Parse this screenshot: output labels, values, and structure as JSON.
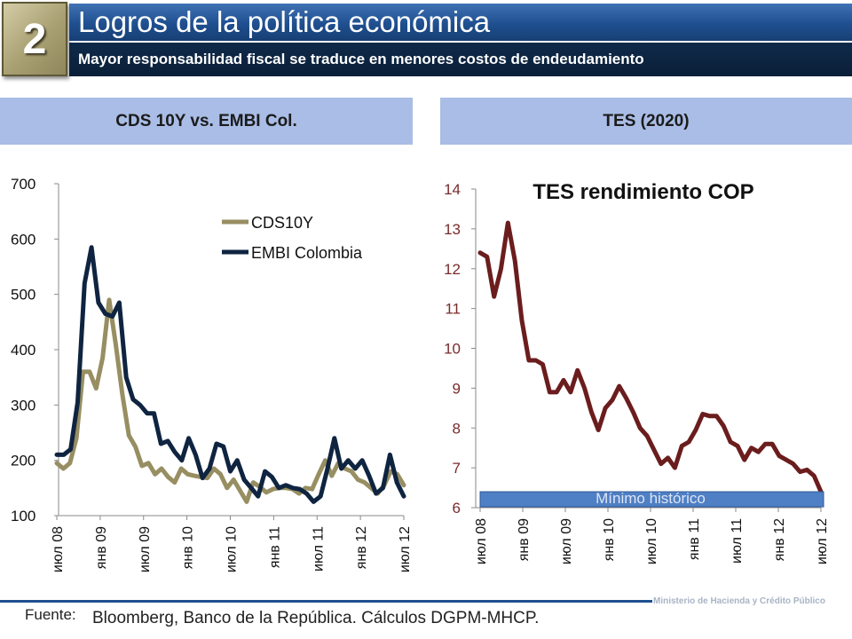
{
  "header": {
    "section_number": "2",
    "title": "Logros de la política económica",
    "subtitle": "Mayor responsabilidad fiscal se traduce en menores costos de endeudamiento"
  },
  "panels": {
    "left_title": "CDS 10Y vs. EMBI Col.",
    "right_title": "TES (2020)"
  },
  "footer": {
    "source_label": "Fuente:",
    "source_text": "Bloomberg, Banco de la República. Cálculos DGPM-MHCP.",
    "ministry": "Ministerio de Hacienda y Crédito Público"
  },
  "colors": {
    "cds": "#978e62",
    "embi": "#0f2440",
    "tes": "#6b1d1d",
    "min_band": "#4f7fc4"
  },
  "chart_data": [
    {
      "type": "line",
      "title": "",
      "xlabel": "",
      "ylabel": "",
      "ylim": [
        100,
        700
      ],
      "yticks": [
        100,
        200,
        300,
        400,
        500,
        600,
        700
      ],
      "x_ticklabels": [
        "июл 08",
        "янв 09",
        "июл 09",
        "янв 10",
        "июл 10",
        "янв 11",
        "июл 11",
        "янв 12",
        "июл 12"
      ],
      "legend_position": "top-right",
      "grid": false,
      "series": [
        {
          "name": "CDS10Y",
          "color": "#978e62",
          "values": [
            195,
            185,
            195,
            240,
            360,
            360,
            330,
            385,
            490,
            410,
            320,
            245,
            225,
            190,
            195,
            175,
            185,
            170,
            160,
            185,
            175,
            172,
            170,
            168,
            185,
            175,
            150,
            165,
            145,
            125,
            160,
            152,
            142,
            148,
            150,
            150,
            148,
            140,
            150,
            148,
            175,
            200,
            172,
            195,
            185,
            180,
            165,
            160,
            150,
            140,
            155,
            180,
            175,
            155
          ]
        },
        {
          "name": "EMBI Colombia",
          "color": "#0f2440",
          "values": [
            210,
            210,
            220,
            305,
            520,
            585,
            485,
            465,
            460,
            485,
            350,
            310,
            300,
            285,
            285,
            230,
            235,
            215,
            200,
            240,
            210,
            168,
            185,
            230,
            225,
            180,
            200,
            165,
            150,
            135,
            180,
            170,
            150,
            155,
            150,
            148,
            140,
            125,
            135,
            185,
            240,
            185,
            200,
            185,
            200,
            172,
            140,
            150,
            210,
            160,
            135
          ]
        }
      ]
    },
    {
      "type": "line",
      "title": "TES rendimiento COP",
      "xlabel": "",
      "ylabel": "",
      "ylim": [
        6,
        14
      ],
      "yticks": [
        6,
        7,
        8,
        9,
        10,
        11,
        12,
        13,
        14
      ],
      "x_ticklabels": [
        "июл 08",
        "янв 09",
        "июл 09",
        "янв 10",
        "июл 10",
        "янв 11",
        "июл 11",
        "янв 12",
        "июл 12"
      ],
      "grid": false,
      "annotation": "Mínimo histórico",
      "series": [
        {
          "name": "",
          "color": "#6b1d1d",
          "values": [
            12.4,
            12.3,
            11.3,
            12.0,
            13.15,
            12.2,
            10.7,
            9.7,
            9.7,
            9.6,
            8.9,
            8.9,
            9.2,
            8.9,
            9.45,
            9.0,
            8.4,
            7.95,
            8.5,
            8.7,
            9.05,
            8.75,
            8.4,
            8.0,
            7.8,
            7.45,
            7.1,
            7.25,
            7.0,
            7.55,
            7.65,
            7.95,
            8.35,
            8.3,
            8.3,
            8.05,
            7.65,
            7.55,
            7.2,
            7.5,
            7.4,
            7.6,
            7.6,
            7.3,
            7.2,
            7.1,
            6.9,
            6.95,
            6.8,
            6.4
          ]
        }
      ]
    }
  ]
}
